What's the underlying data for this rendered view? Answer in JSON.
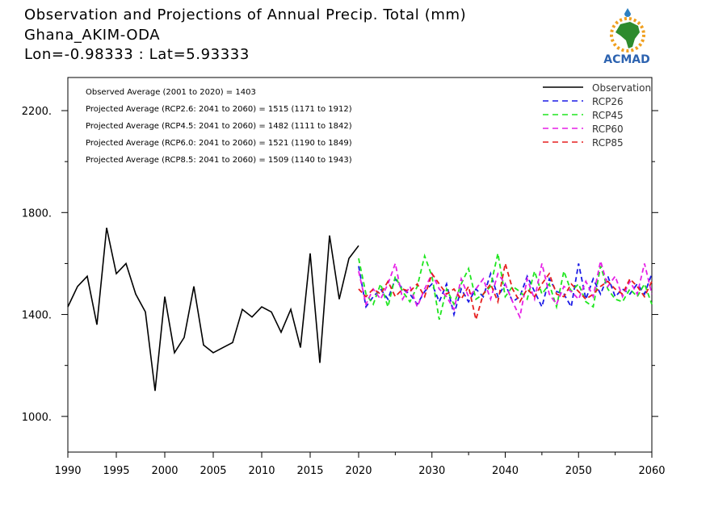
{
  "header": {
    "title": "Observation and Projections of Annual Precip. Total (mm)",
    "station": "Ghana_AKIM-ODA",
    "coords": "Lon=-0.98333 : Lat=5.93333"
  },
  "logo": {
    "text": "ACMAD"
  },
  "annotations": [
    "Observed Average (2001 to 2020) = 1403",
    "Projected Average (RCP2.6: 2041 to 2060) = 1515 (1171 to 1912)",
    "Projected Average (RCP4.5: 2041 to 2060) = 1482 (1111 to 1842)",
    "Projected Average (RCP6.0: 2041 to 2060) = 1521 (1190 to 1849)",
    "Projected Average (RCP8.5: 2041 to 2060) = 1509 (1140 to 1943)"
  ],
  "chart_data": {
    "type": "line",
    "title": "Observation and Projections of Annual Precip. Total (mm)",
    "xlabel": "",
    "ylabel": "",
    "x_ticks": [
      "1990",
      "1995",
      "2000",
      "2005",
      "2010",
      "2015",
      "2020",
      "2030",
      "2040",
      "2050",
      "2060"
    ],
    "y_ticks": [
      "1000.",
      "1400.",
      "1800.",
      "2200."
    ],
    "ylim": [
      860,
      2330
    ],
    "legend_position": "top-right",
    "grid": false,
    "series": [
      {
        "name": "Observation",
        "color": "#000000",
        "dash": "solid",
        "x": [
          1990,
          1991,
          1992,
          1993,
          1994,
          1995,
          1996,
          1997,
          1998,
          1999,
          2000,
          2001,
          2002,
          2003,
          2004,
          2005,
          2006,
          2007,
          2008,
          2009,
          2010,
          2011,
          2012,
          2013,
          2014,
          2015,
          2016,
          2017,
          2018,
          2019,
          2020
        ],
        "values": [
          1430,
          1510,
          1550,
          1360,
          1740,
          1560,
          1600,
          1480,
          1410,
          1100,
          1470,
          1250,
          1310,
          1510,
          1280,
          1250,
          1270,
          1290,
          1420,
          1390,
          1430,
          1410,
          1330,
          1420,
          1270,
          1640,
          1210,
          1710,
          1460,
          1620,
          1670
        ]
      },
      {
        "name": "RCP26",
        "color": "#1a1ae6",
        "dash": "dashed",
        "x": [
          2020,
          2021,
          2022,
          2023,
          2024,
          2025,
          2026,
          2027,
          2028,
          2029,
          2030,
          2031,
          2032,
          2033,
          2034,
          2035,
          2036,
          2037,
          2038,
          2039,
          2040,
          2041,
          2042,
          2043,
          2044,
          2045,
          2046,
          2047,
          2048,
          2049,
          2050,
          2051,
          2052,
          2053,
          2054,
          2055,
          2056,
          2057,
          2058,
          2059,
          2060
        ],
        "values": [
          1590,
          1430,
          1470,
          1500,
          1460,
          1540,
          1500,
          1480,
          1440,
          1490,
          1520,
          1450,
          1520,
          1400,
          1500,
          1450,
          1500,
          1470,
          1560,
          1470,
          1520,
          1450,
          1470,
          1550,
          1490,
          1430,
          1540,
          1490,
          1480,
          1430,
          1600,
          1460,
          1540,
          1480,
          1550,
          1470,
          1500,
          1480,
          1520,
          1480,
          1560
        ]
      },
      {
        "name": "RCP45",
        "color": "#1ee61e",
        "dash": "dashed",
        "x": [
          2020,
          2021,
          2022,
          2023,
          2024,
          2025,
          2026,
          2027,
          2028,
          2029,
          2030,
          2031,
          2032,
          2033,
          2034,
          2035,
          2036,
          2037,
          2038,
          2039,
          2040,
          2041,
          2042,
          2043,
          2044,
          2045,
          2046,
          2047,
          2048,
          2049,
          2050,
          2051,
          2052,
          2053,
          2054,
          2055,
          2056,
          2057,
          2058,
          2059,
          2060
        ],
        "values": [
          1620,
          1480,
          1440,
          1520,
          1430,
          1550,
          1490,
          1450,
          1510,
          1630,
          1550,
          1380,
          1500,
          1440,
          1520,
          1580,
          1460,
          1480,
          1510,
          1640,
          1470,
          1510,
          1490,
          1460,
          1570,
          1480,
          1520,
          1430,
          1570,
          1490,
          1520,
          1450,
          1430,
          1590,
          1500,
          1460,
          1450,
          1500,
          1470,
          1520,
          1440
        ]
      },
      {
        "name": "RCP60",
        "color": "#e61ee6",
        "dash": "dashed",
        "x": [
          2020,
          2021,
          2022,
          2023,
          2024,
          2025,
          2026,
          2027,
          2028,
          2029,
          2030,
          2031,
          2032,
          2033,
          2034,
          2035,
          2036,
          2037,
          2038,
          2039,
          2040,
          2041,
          2042,
          2043,
          2044,
          2045,
          2046,
          2047,
          2048,
          2049,
          2050,
          2051,
          2052,
          2053,
          2054,
          2055,
          2056,
          2057,
          2058,
          2059,
          2060
        ],
        "values": [
          1570,
          1440,
          1500,
          1460,
          1520,
          1600,
          1460,
          1510,
          1430,
          1500,
          1560,
          1500,
          1470,
          1420,
          1540,
          1470,
          1500,
          1540,
          1460,
          1560,
          1520,
          1450,
          1390,
          1540,
          1460,
          1600,
          1480,
          1440,
          1510,
          1490,
          1460,
          1530,
          1470,
          1610,
          1510,
          1550,
          1470,
          1530,
          1480,
          1600,
          1480
        ]
      },
      {
        "name": "RCP85",
        "color": "#e61e1e",
        "dash": "dashed",
        "x": [
          2020,
          2021,
          2022,
          2023,
          2024,
          2025,
          2026,
          2027,
          2028,
          2029,
          2030,
          2031,
          2032,
          2033,
          2034,
          2035,
          2036,
          2037,
          2038,
          2039,
          2040,
          2041,
          2042,
          2043,
          2044,
          2045,
          2046,
          2047,
          2048,
          2049,
          2050,
          2051,
          2052,
          2053,
          2054,
          2055,
          2056,
          2057,
          2058,
          2059,
          2060
        ],
        "values": [
          1500,
          1470,
          1500,
          1480,
          1530,
          1470,
          1500,
          1490,
          1520,
          1470,
          1560,
          1520,
          1480,
          1500,
          1460,
          1510,
          1380,
          1480,
          1520,
          1450,
          1600,
          1500,
          1450,
          1500,
          1470,
          1520,
          1560,
          1480,
          1470,
          1520,
          1490,
          1460,
          1480,
          1510,
          1530,
          1500,
          1480,
          1540,
          1510,
          1470,
          1530
        ]
      }
    ]
  }
}
